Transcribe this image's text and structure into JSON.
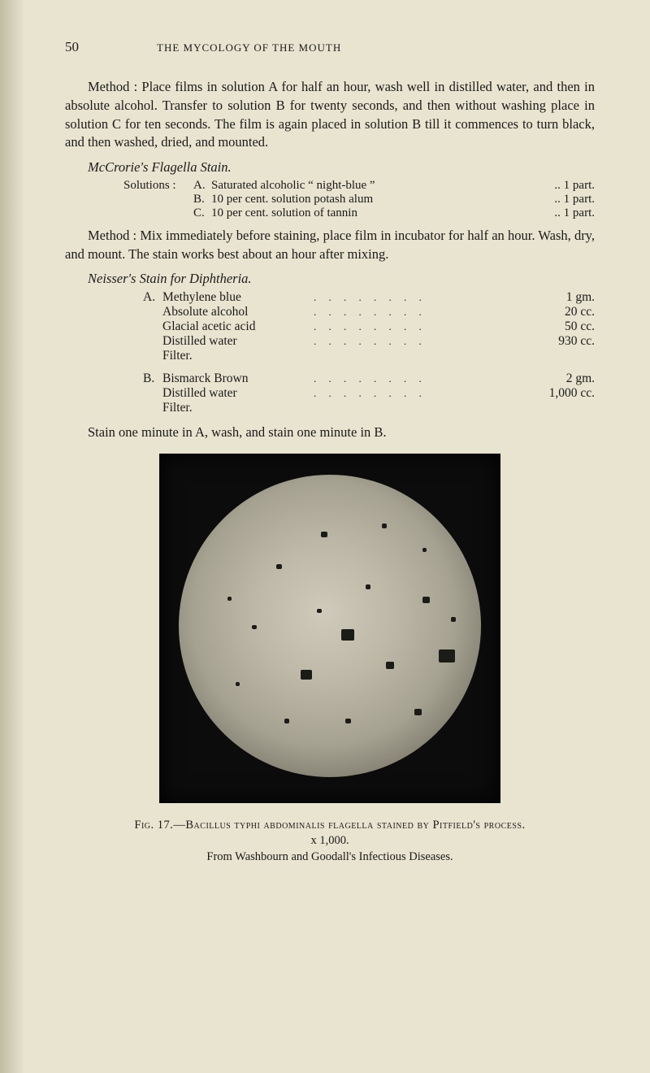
{
  "page_number": "50",
  "running_head": "THE MYCOLOGY OF THE MOUTH",
  "para1": "Method : Place films in solution A for half an hour, wash well in distilled water, and then in absolute alcohol. Transfer to solution B for twenty seconds, and then without washing place in solution C for ten seconds. The film is again placed in solution B till it commences to turn black, and then washed, dried, and mounted.",
  "mccrorie_title": "McCrorie's Flagella Stain.",
  "solutions_lead": "Solutions :",
  "solutions": [
    {
      "letter": "A.",
      "text": "Saturated alcoholic “ night-blue ”",
      "amt": ".. 1 part."
    },
    {
      "letter": "B.",
      "text": "10 per cent. solution potash alum",
      "amt": ".. 1 part."
    },
    {
      "letter": "C.",
      "text": "10 per cent. solution of tannin",
      "amt": ".. 1 part."
    }
  ],
  "para2": "Method : Mix immediately before staining, place film in incubator for half an hour. Wash, dry, and mount. The stain works best about an hour after mixing.",
  "neisser_title": "Neisser's Stain for Diphtheria.",
  "recipeA": [
    {
      "letter": "A.",
      "name": "Methylene blue",
      "amt": "1 gm."
    },
    {
      "letter": "",
      "name": "Absolute alcohol",
      "amt": "20 cc."
    },
    {
      "letter": "",
      "name": "Glacial acetic acid",
      "amt": "50 cc."
    },
    {
      "letter": "",
      "name": "Distilled water",
      "amt": "930 cc."
    },
    {
      "letter": "",
      "name": "Filter.",
      "amt": ""
    }
  ],
  "recipeB": [
    {
      "letter": "B.",
      "name": "Bismarck Brown",
      "amt": "2 gm."
    },
    {
      "letter": "",
      "name": "Distilled water",
      "amt": "1,000 cc."
    },
    {
      "letter": "",
      "name": "Filter.",
      "amt": ""
    }
  ],
  "para3": "Stain one minute in A, wash, and stain one minute in B.",
  "fig_label": "Fig. 17.—",
  "fig_title_caps": "Bacillus typhi abdominalis flagella stained by Pitfield's process.",
  "fig_mag": "x 1,000.",
  "fig_source": "From Washbourn and Goodall's Infectious Diseases.",
  "dots": ". .   . .   . .   . .",
  "specks": [
    {
      "l": 200,
      "t": 190,
      "w": 16,
      "h": 14
    },
    {
      "l": 150,
      "t": 240,
      "w": 14,
      "h": 12
    },
    {
      "l": 255,
      "t": 230,
      "w": 10,
      "h": 9
    },
    {
      "l": 300,
      "t": 150,
      "w": 9,
      "h": 8
    },
    {
      "l": 120,
      "t": 110,
      "w": 7,
      "h": 6
    },
    {
      "l": 175,
      "t": 70,
      "w": 8,
      "h": 7
    },
    {
      "l": 250,
      "t": 60,
      "w": 6,
      "h": 6
    },
    {
      "l": 90,
      "t": 185,
      "w": 6,
      "h": 5
    },
    {
      "l": 320,
      "t": 215,
      "w": 20,
      "h": 16
    },
    {
      "l": 290,
      "t": 288,
      "w": 9,
      "h": 8
    },
    {
      "l": 205,
      "t": 300,
      "w": 7,
      "h": 6
    },
    {
      "l": 130,
      "t": 300,
      "w": 6,
      "h": 6
    },
    {
      "l": 70,
      "t": 255,
      "w": 5,
      "h": 5
    },
    {
      "l": 60,
      "t": 150,
      "w": 5,
      "h": 5
    },
    {
      "l": 300,
      "t": 90,
      "w": 5,
      "h": 5
    },
    {
      "l": 230,
      "t": 135,
      "w": 6,
      "h": 6
    },
    {
      "l": 170,
      "t": 165,
      "w": 6,
      "h": 5
    },
    {
      "l": 335,
      "t": 175,
      "w": 6,
      "h": 6
    }
  ]
}
